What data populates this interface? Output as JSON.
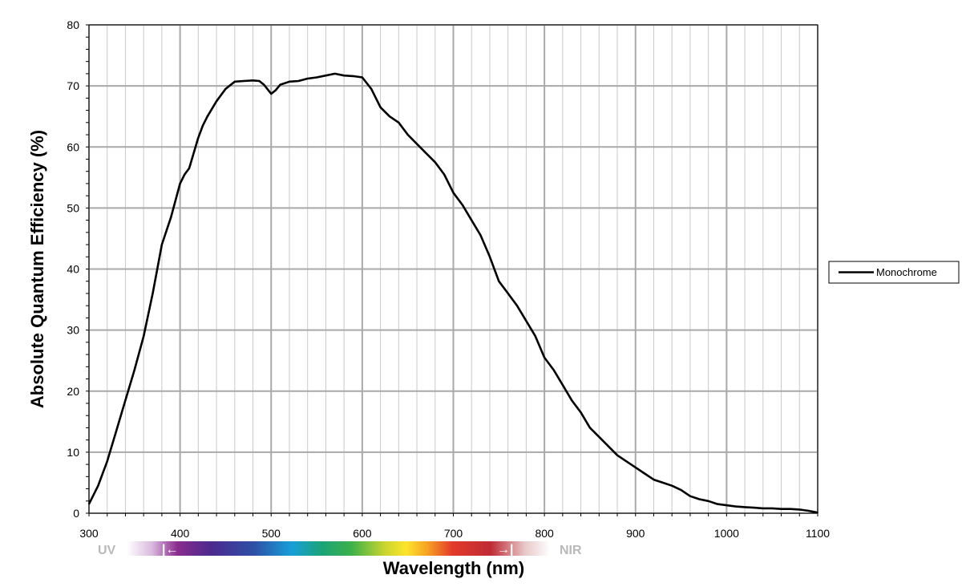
{
  "chart_data": {
    "type": "line",
    "title": "",
    "xlabel": "Wavelength (nm)",
    "ylabel": "Absolute Quantum Efficiency (%)",
    "xlim": [
      300,
      1100
    ],
    "ylim": [
      0,
      80
    ],
    "x_ticks": [
      300,
      400,
      500,
      600,
      700,
      800,
      900,
      1000,
      1100
    ],
    "y_ticks": [
      0,
      10,
      20,
      30,
      40,
      50,
      60,
      70,
      80
    ],
    "grid": true,
    "legend_position": "right",
    "spectrum_band": {
      "left_label": "UV",
      "right_label": "NIR",
      "left_arrow": "|←",
      "right_arrow": "→|",
      "label_color": "#b9b9b9"
    },
    "series": [
      {
        "name": "Monochrome",
        "color": "#000000",
        "x": [
          300,
          310,
          320,
          330,
          340,
          350,
          360,
          370,
          375,
          380,
          390,
          400,
          405,
          410,
          420,
          425,
          430,
          440,
          450,
          460,
          470,
          480,
          487,
          492,
          500,
          505,
          510,
          520,
          530,
          540,
          550,
          560,
          570,
          580,
          590,
          600,
          610,
          620,
          630,
          640,
          650,
          660,
          670,
          680,
          690,
          700,
          710,
          720,
          730,
          740,
          750,
          760,
          770,
          780,
          790,
          800,
          810,
          820,
          830,
          840,
          850,
          860,
          870,
          880,
          890,
          900,
          910,
          920,
          930,
          940,
          950,
          960,
          970,
          980,
          990,
          1000,
          1010,
          1020,
          1030,
          1040,
          1050,
          1060,
          1070,
          1080,
          1090,
          1100
        ],
        "values": [
          1.5,
          4.5,
          8.5,
          13.5,
          18.5,
          23.5,
          29,
          36,
          40,
          44,
          48.5,
          54,
          55.5,
          56.5,
          61.5,
          63.5,
          65,
          67.5,
          69.5,
          70.7,
          70.8,
          70.9,
          70.8,
          70.2,
          68.7,
          69.3,
          70.2,
          70.7,
          70.8,
          71.2,
          71.4,
          71.7,
          72,
          71.7,
          71.6,
          71.4,
          69.5,
          66.5,
          65,
          64,
          62,
          60.5,
          59,
          57.5,
          55.5,
          52.5,
          50.5,
          48,
          45.5,
          42,
          38,
          36,
          34,
          31.5,
          29,
          25.5,
          23.5,
          21,
          18.5,
          16.5,
          14,
          12.5,
          11,
          9.5,
          8.5,
          7.5,
          6.5,
          5.5,
          5,
          4.5,
          3.8,
          2.8,
          2.3,
          2,
          1.5,
          1.3,
          1.1,
          1,
          0.9,
          0.8,
          0.8,
          0.7,
          0.7,
          0.6,
          0.4,
          0.1
        ]
      }
    ]
  }
}
